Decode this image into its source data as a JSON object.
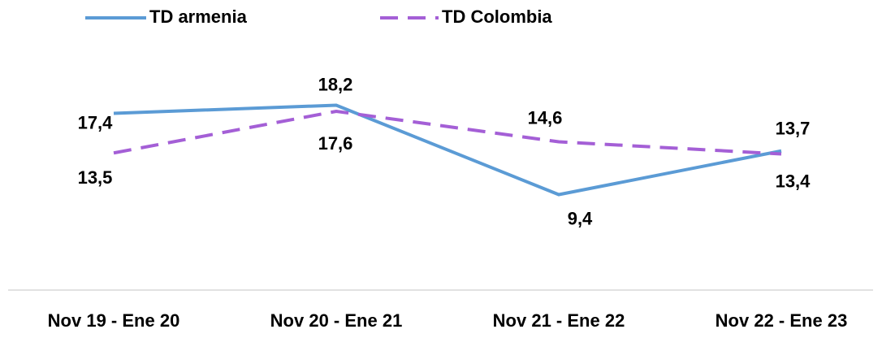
{
  "chart_data": {
    "type": "line",
    "categories": [
      "Nov 19 - Ene 20",
      "Nov 20 - Ene 21",
      "Nov 21 - Ene 22",
      "Nov 22 - Ene 23"
    ],
    "series": [
      {
        "name": "TD armenia",
        "color": "#5b9bd5",
        "dash": false,
        "values": [
          17.4,
          18.2,
          9.4,
          13.7
        ],
        "value_labels": [
          "17,4",
          "18,2",
          "9,4",
          "13,7"
        ]
      },
      {
        "name": "TD Colombia",
        "color": "#a45fd6",
        "dash": true,
        "values": [
          13.5,
          17.6,
          14.6,
          13.4
        ],
        "value_labels": [
          "13,5",
          "17,6",
          "14,6",
          "13,4"
        ]
      }
    ],
    "ylim": [
      0,
      20
    ],
    "legend": "top"
  }
}
